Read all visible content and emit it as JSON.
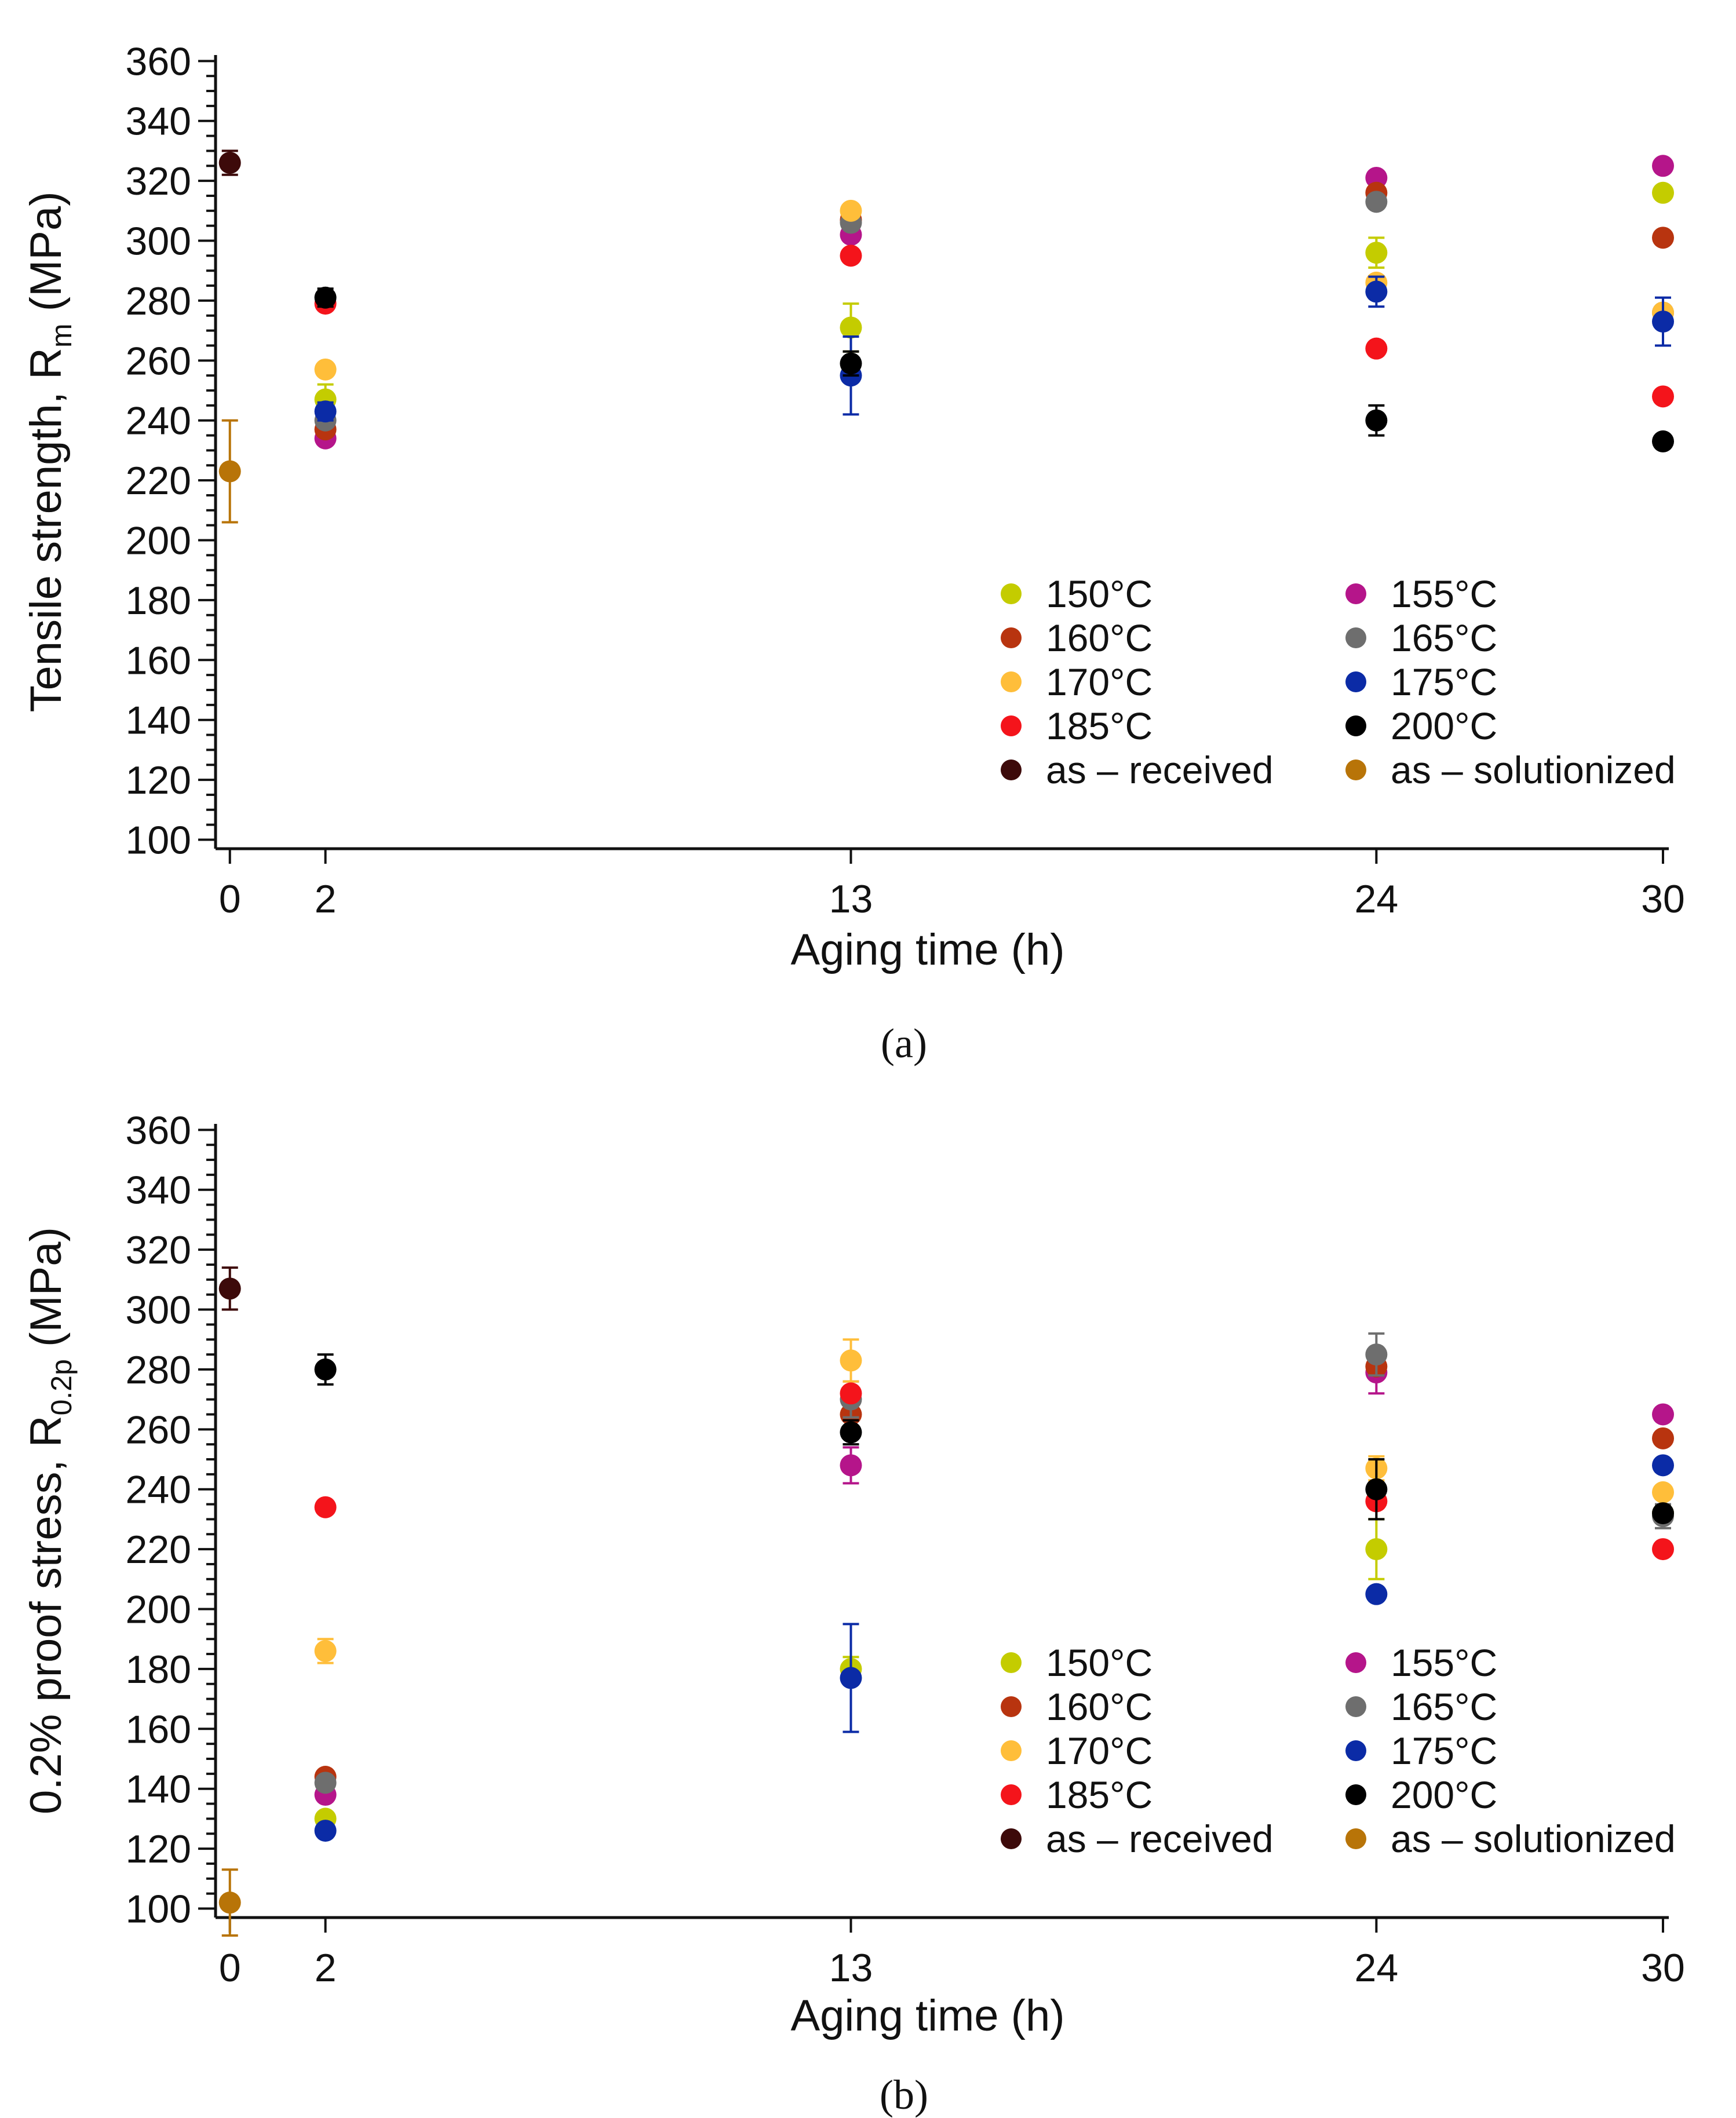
{
  "colors": {
    "150": "#c4cc00",
    "155": "#b5158a",
    "160": "#b8340f",
    "165": "#6e6e6e",
    "170": "#ffbe3a",
    "175": "#0b2ba6",
    "185": "#f4141b",
    "200": "#000000",
    "as_received": "#3d0a0a",
    "as_solutionized": "#b87408"
  },
  "chart_data": [
    {
      "type": "scatter",
      "panel_label": "(a)",
      "xlabel": "Aging time (h)",
      "ylabel_main": "Tensile strength, R",
      "ylabel_sub": "m",
      "ylabel_unit": " (MPa)",
      "xlim": [
        -0.3,
        30
      ],
      "ylim": [
        97,
        362
      ],
      "x_ticks": [
        0,
        2,
        13,
        24,
        30
      ],
      "x_tick_labels": [
        "0",
        "2",
        "13",
        "24",
        "30"
      ],
      "y_ticks": [
        100,
        120,
        140,
        160,
        180,
        200,
        220,
        240,
        260,
        280,
        300,
        320,
        340,
        360
      ],
      "y_tick_labels": [
        "100",
        "120",
        "140",
        "160",
        "180",
        "200",
        "220",
        "240",
        "260",
        "280",
        "300",
        "320",
        "340",
        "360"
      ],
      "legend": [
        {
          "key": "150",
          "label": "150°C"
        },
        {
          "key": "155",
          "label": "155°C"
        },
        {
          "key": "160",
          "label": "160°C"
        },
        {
          "key": "165",
          "label": "165°C"
        },
        {
          "key": "170",
          "label": "170°C"
        },
        {
          "key": "175",
          "label": "175°C"
        },
        {
          "key": "185",
          "label": "185°C"
        },
        {
          "key": "200",
          "label": "200°C"
        },
        {
          "key": "as_received",
          "label": "as – received"
        },
        {
          "key": "as_solutionized",
          "label": "as – solutionized"
        }
      ],
      "series": [
        {
          "key": "as_received",
          "name": "as – received",
          "points": [
            {
              "x": 0,
              "y": 326,
              "err": 4
            }
          ]
        },
        {
          "key": "as_solutionized",
          "name": "as – solutionized",
          "points": [
            {
              "x": 0,
              "y": 223,
              "err": 17
            }
          ]
        },
        {
          "key": "150",
          "name": "150°C",
          "points": [
            {
              "x": 2,
              "y": 247,
              "err": 5
            },
            {
              "x": 13,
              "y": 271,
              "err": 8
            },
            {
              "x": 24,
              "y": 296,
              "err": 5
            },
            {
              "x": 30,
              "y": 316,
              "err": 0
            }
          ]
        },
        {
          "key": "155",
          "name": "155°C",
          "points": [
            {
              "x": 2,
              "y": 234,
              "err": 0
            },
            {
              "x": 13,
              "y": 302,
              "err": 0
            },
            {
              "x": 24,
              "y": 321,
              "err": 0
            },
            {
              "x": 30,
              "y": 325,
              "err": 0
            }
          ]
        },
        {
          "key": "160",
          "name": "160°C",
          "points": [
            {
              "x": 2,
              "y": 237,
              "err": 0
            },
            {
              "x": 13,
              "y": 307,
              "err": 0
            },
            {
              "x": 24,
              "y": 316,
              "err": 0
            },
            {
              "x": 30,
              "y": 301,
              "err": 0
            }
          ]
        },
        {
          "key": "165",
          "name": "165°C",
          "points": [
            {
              "x": 2,
              "y": 240,
              "err": 0
            },
            {
              "x": 13,
              "y": 306,
              "err": 0
            },
            {
              "x": 24,
              "y": 313,
              "err": 0
            },
            {
              "x": 30,
              "y": 276,
              "err": 0
            }
          ]
        },
        {
          "key": "170",
          "name": "170°C",
          "points": [
            {
              "x": 2,
              "y": 257,
              "err": 0
            },
            {
              "x": 13,
              "y": 310,
              "err": 0
            },
            {
              "x": 24,
              "y": 286,
              "err": 0
            },
            {
              "x": 30,
              "y": 276,
              "err": 0
            }
          ]
        },
        {
          "key": "175",
          "name": "175°C",
          "points": [
            {
              "x": 2,
              "y": 243,
              "err": 3
            },
            {
              "x": 13,
              "y": 255,
              "err": 13
            },
            {
              "x": 24,
              "y": 283,
              "err": 5
            },
            {
              "x": 30,
              "y": 273,
              "err": 8
            }
          ]
        },
        {
          "key": "185",
          "name": "185°C",
          "points": [
            {
              "x": 2,
              "y": 279,
              "err": 0
            },
            {
              "x": 13,
              "y": 295,
              "err": 0
            },
            {
              "x": 24,
              "y": 264,
              "err": 0
            },
            {
              "x": 30,
              "y": 248,
              "err": 0
            }
          ]
        },
        {
          "key": "200",
          "name": "200°C",
          "points": [
            {
              "x": 2,
              "y": 281,
              "err": 3
            },
            {
              "x": 13,
              "y": 259,
              "err": 4
            },
            {
              "x": 24,
              "y": 240,
              "err": 5
            },
            {
              "x": 30,
              "y": 233,
              "err": 0
            }
          ]
        }
      ]
    },
    {
      "type": "scatter",
      "panel_label": "(b)",
      "xlabel": "Aging time (h)",
      "ylabel_main": "0.2% proof stress, R",
      "ylabel_sub": "0.2p",
      "ylabel_unit": " (MPa)",
      "xlim": [
        -0.3,
        30
      ],
      "ylim": [
        97,
        362
      ],
      "x_ticks": [
        0,
        2,
        13,
        24,
        30
      ],
      "x_tick_labels": [
        "0",
        "2",
        "13",
        "24",
        "30"
      ],
      "y_ticks": [
        100,
        120,
        140,
        160,
        180,
        200,
        220,
        240,
        260,
        280,
        300,
        320,
        340,
        360
      ],
      "y_tick_labels": [
        "100",
        "120",
        "140",
        "160",
        "180",
        "200",
        "220",
        "240",
        "260",
        "280",
        "300",
        "320",
        "340",
        "360"
      ],
      "legend": [
        {
          "key": "150",
          "label": "150°C"
        },
        {
          "key": "155",
          "label": "155°C"
        },
        {
          "key": "160",
          "label": "160°C"
        },
        {
          "key": "165",
          "label": "165°C"
        },
        {
          "key": "170",
          "label": "170°C"
        },
        {
          "key": "175",
          "label": "175°C"
        },
        {
          "key": "185",
          "label": "185°C"
        },
        {
          "key": "200",
          "label": "200°C"
        },
        {
          "key": "as_received",
          "label": "as – received"
        },
        {
          "key": "as_solutionized",
          "label": "as – solutionized"
        }
      ],
      "series": [
        {
          "key": "as_received",
          "name": "as – received",
          "points": [
            {
              "x": 0,
              "y": 307,
              "err": 7
            }
          ]
        },
        {
          "key": "as_solutionized",
          "name": "as – solutionized",
          "points": [
            {
              "x": 0,
              "y": 102,
              "err": 11
            }
          ]
        },
        {
          "key": "150",
          "name": "150°C",
          "points": [
            {
              "x": 2,
              "y": 130,
              "err": 0
            },
            {
              "x": 13,
              "y": 180,
              "err": 4
            },
            {
              "x": 24,
              "y": 220,
              "err": 10
            },
            {
              "x": 30,
              "y": 232,
              "err": 0
            }
          ]
        },
        {
          "key": "155",
          "name": "155°C",
          "points": [
            {
              "x": 2,
              "y": 138,
              "err": 0
            },
            {
              "x": 13,
              "y": 248,
              "err": 6
            },
            {
              "x": 24,
              "y": 279,
              "err": 7
            },
            {
              "x": 30,
              "y": 265,
              "err": 0
            }
          ]
        },
        {
          "key": "160",
          "name": "160°C",
          "points": [
            {
              "x": 2,
              "y": 144,
              "err": 0
            },
            {
              "x": 13,
              "y": 265,
              "err": 0
            },
            {
              "x": 24,
              "y": 281,
              "err": 0
            },
            {
              "x": 30,
              "y": 257,
              "err": 0
            }
          ]
        },
        {
          "key": "165",
          "name": "165°C",
          "points": [
            {
              "x": 2,
              "y": 142,
              "err": 0
            },
            {
              "x": 13,
              "y": 270,
              "err": 6
            },
            {
              "x": 24,
              "y": 285,
              "err": 7
            },
            {
              "x": 30,
              "y": 231,
              "err": 4
            }
          ]
        },
        {
          "key": "170",
          "name": "170°C",
          "points": [
            {
              "x": 2,
              "y": 186,
              "err": 4
            },
            {
              "x": 13,
              "y": 283,
              "err": 7
            },
            {
              "x": 24,
              "y": 247,
              "err": 4
            },
            {
              "x": 30,
              "y": 239,
              "err": 0
            }
          ]
        },
        {
          "key": "175",
          "name": "175°C",
          "points": [
            {
              "x": 2,
              "y": 126,
              "err": 0
            },
            {
              "x": 13,
              "y": 177,
              "err": 18
            },
            {
              "x": 24,
              "y": 205,
              "err": 0
            },
            {
              "x": 30,
              "y": 248,
              "err": 0
            }
          ]
        },
        {
          "key": "185",
          "name": "185°C",
          "points": [
            {
              "x": 2,
              "y": 234,
              "err": 0
            },
            {
              "x": 13,
              "y": 272,
              "err": 0
            },
            {
              "x": 24,
              "y": 236,
              "err": 0
            },
            {
              "x": 30,
              "y": 220,
              "err": 0
            }
          ]
        },
        {
          "key": "200",
          "name": "200°C",
          "points": [
            {
              "x": 2,
              "y": 280,
              "err": 5
            },
            {
              "x": 13,
              "y": 259,
              "err": 4
            },
            {
              "x": 24,
              "y": 240,
              "err": 10
            },
            {
              "x": 30,
              "y": 232,
              "err": 0
            }
          ]
        }
      ]
    }
  ]
}
